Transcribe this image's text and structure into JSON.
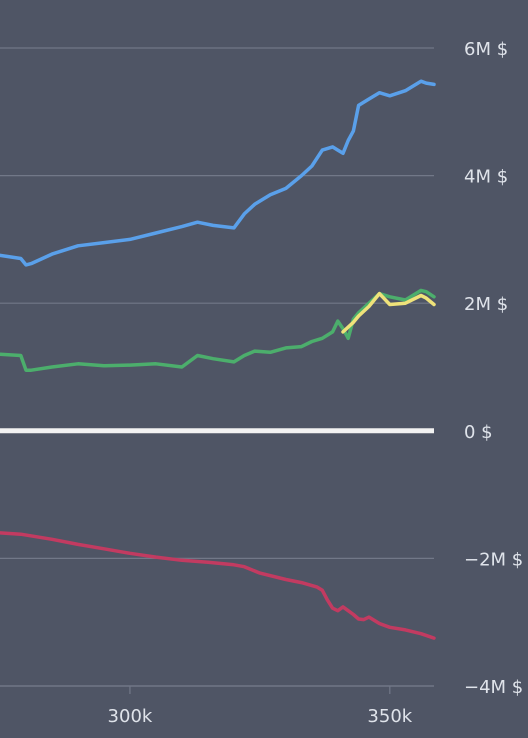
{
  "colors": {
    "background": "#4f5565",
    "grid": "#727888",
    "zero_line": "#f2f2f2",
    "tick_text": "#dfe3ea"
  },
  "chart_data": {
    "type": "line",
    "title": "",
    "xlabel": "",
    "ylabel": "",
    "xlim": [
      275000,
      358500
    ],
    "ylim": [
      -4000000,
      6300000
    ],
    "grid": true,
    "x_ticks": [
      {
        "value": 300000,
        "label": "300k"
      },
      {
        "value": 350000,
        "label": "350k"
      }
    ],
    "y_ticks": [
      {
        "value": 6000000,
        "label": "6M $"
      },
      {
        "value": 4000000,
        "label": "4M $"
      },
      {
        "value": 2000000,
        "label": "2M $"
      },
      {
        "value": 0,
        "label": "0 $"
      },
      {
        "value": -2000000,
        "label": "−2M $"
      },
      {
        "value": -4000000,
        "label": "−4M $"
      }
    ],
    "series": [
      {
        "color": "#5aa0ea",
        "x": [
          275000,
          279000,
          280000,
          281000,
          285000,
          290000,
          295000,
          300000,
          305000,
          310000,
          313000,
          316000,
          320000,
          322000,
          324000,
          327000,
          330000,
          333000,
          335000,
          337000,
          339000,
          340000,
          341000,
          342000,
          343000,
          344000,
          346000,
          348000,
          350000,
          353000,
          356000,
          357000,
          358500
        ],
        "y": [
          2750000,
          2700000,
          2600000,
          2620000,
          2770000,
          2900000,
          2950000,
          3000000,
          3100000,
          3200000,
          3270000,
          3220000,
          3180000,
          3400000,
          3550000,
          3700000,
          3800000,
          4000000,
          4150000,
          4400000,
          4450000,
          4400000,
          4350000,
          4550000,
          4700000,
          5100000,
          5200000,
          5300000,
          5250000,
          5330000,
          5480000,
          5450000,
          5430000
        ]
      },
      {
        "color": "#4cae6c",
        "x": [
          275000,
          279000,
          280000,
          281000,
          285000,
          290000,
          295000,
          300000,
          305000,
          310000,
          313000,
          316000,
          320000,
          322000,
          324000,
          327000,
          330000,
          333000,
          335000,
          337000,
          339000,
          340000,
          341000,
          342000,
          343000,
          344000,
          346000,
          348000,
          350000,
          353000,
          356000,
          357000,
          358500
        ],
        "y": [
          1200000,
          1180000,
          950000,
          950000,
          1000000,
          1050000,
          1020000,
          1030000,
          1050000,
          1000000,
          1180000,
          1130000,
          1080000,
          1180000,
          1250000,
          1230000,
          1300000,
          1320000,
          1400000,
          1450000,
          1550000,
          1720000,
          1600000,
          1450000,
          1750000,
          1850000,
          2000000,
          2150000,
          2100000,
          2050000,
          2200000,
          2180000,
          2100000
        ]
      },
      {
        "color": "#efe27a",
        "x": [
          341000,
          343000,
          344000,
          346000,
          348000,
          350000,
          353000,
          356000,
          357000,
          358500
        ],
        "y": [
          1550000,
          1700000,
          1800000,
          1950000,
          2150000,
          1980000,
          2000000,
          2120000,
          2080000,
          1980000
        ]
      },
      {
        "color": "#c23b61",
        "x": [
          275000,
          279000,
          285000,
          290000,
          295000,
          300000,
          305000,
          310000,
          315000,
          320000,
          322000,
          325000,
          330000,
          333000,
          336000,
          337000,
          338000,
          339000,
          340000,
          341000,
          342000,
          343000,
          344000,
          345000,
          346000,
          348000,
          350000,
          353000,
          356000,
          358500
        ],
        "y": [
          -1600000,
          -1620000,
          -1700000,
          -1780000,
          -1850000,
          -1920000,
          -1980000,
          -2030000,
          -2060000,
          -2100000,
          -2130000,
          -2230000,
          -2330000,
          -2380000,
          -2450000,
          -2500000,
          -2650000,
          -2780000,
          -2820000,
          -2760000,
          -2820000,
          -2880000,
          -2950000,
          -2960000,
          -2920000,
          -3020000,
          -3080000,
          -3120000,
          -3180000,
          -3250000
        ]
      }
    ]
  }
}
